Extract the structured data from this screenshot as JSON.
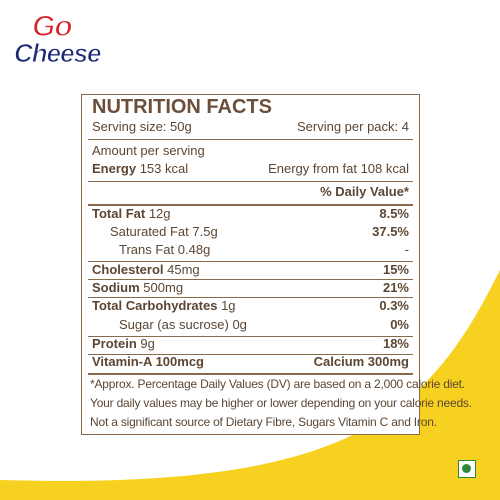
{
  "brand": {
    "logo_go": "Go",
    "logo_cheese": "Cheese"
  },
  "colors": {
    "accent_yellow": "#f7d11f",
    "text_brown": "#5b4634",
    "veg_green": "#2d8a3d"
  },
  "nutrition": {
    "title": "NUTRITION FACTS",
    "serving_size": "Serving size: 50g",
    "serving_per_pack": "Serving per pack: 4",
    "amount_per_serving": "Amount per serving",
    "energy_label": "Energy",
    "energy_value": "153 kcal",
    "energy_from_fat": "Energy from fat 108 kcal",
    "dv_header": "% Daily Value*",
    "rows": [
      {
        "label": "Total Fat",
        "amount": "12g",
        "dv": "8.5%",
        "bold": true
      },
      {
        "label": "Saturated Fat",
        "amount": "7.5g",
        "dv": "37.5%",
        "bold": false
      },
      {
        "label": "Trans Fat",
        "amount": "0.48g",
        "dv": "-",
        "bold": false
      },
      {
        "label": "Cholesterol",
        "amount": "45mg",
        "dv": "15%",
        "bold": true
      },
      {
        "label": "Sodium",
        "amount": "500mg",
        "dv": "21%",
        "bold": true
      },
      {
        "label": "Total Carbohydrates",
        "amount": "1g",
        "dv": "0.3%",
        "bold": true
      },
      {
        "label": "Sugar (as sucrose)",
        "amount": "0g",
        "dv": "0%",
        "bold": false
      },
      {
        "label": "Protein",
        "amount": "9g",
        "dv": "18%",
        "bold": true
      }
    ],
    "vitamin_a": "Vitamin-A 100mcg",
    "calcium": "Calcium 300mg",
    "footnote_lines": [
      "*Approx. Percentage Daily Values (DV) are based on a 2,000 calorie diet.",
      "Your daily values may be higher or lower depending on your calorie needs.",
      "Not a significant source of Dietary Fibre, Sugars Vitamin C and Iron."
    ]
  }
}
